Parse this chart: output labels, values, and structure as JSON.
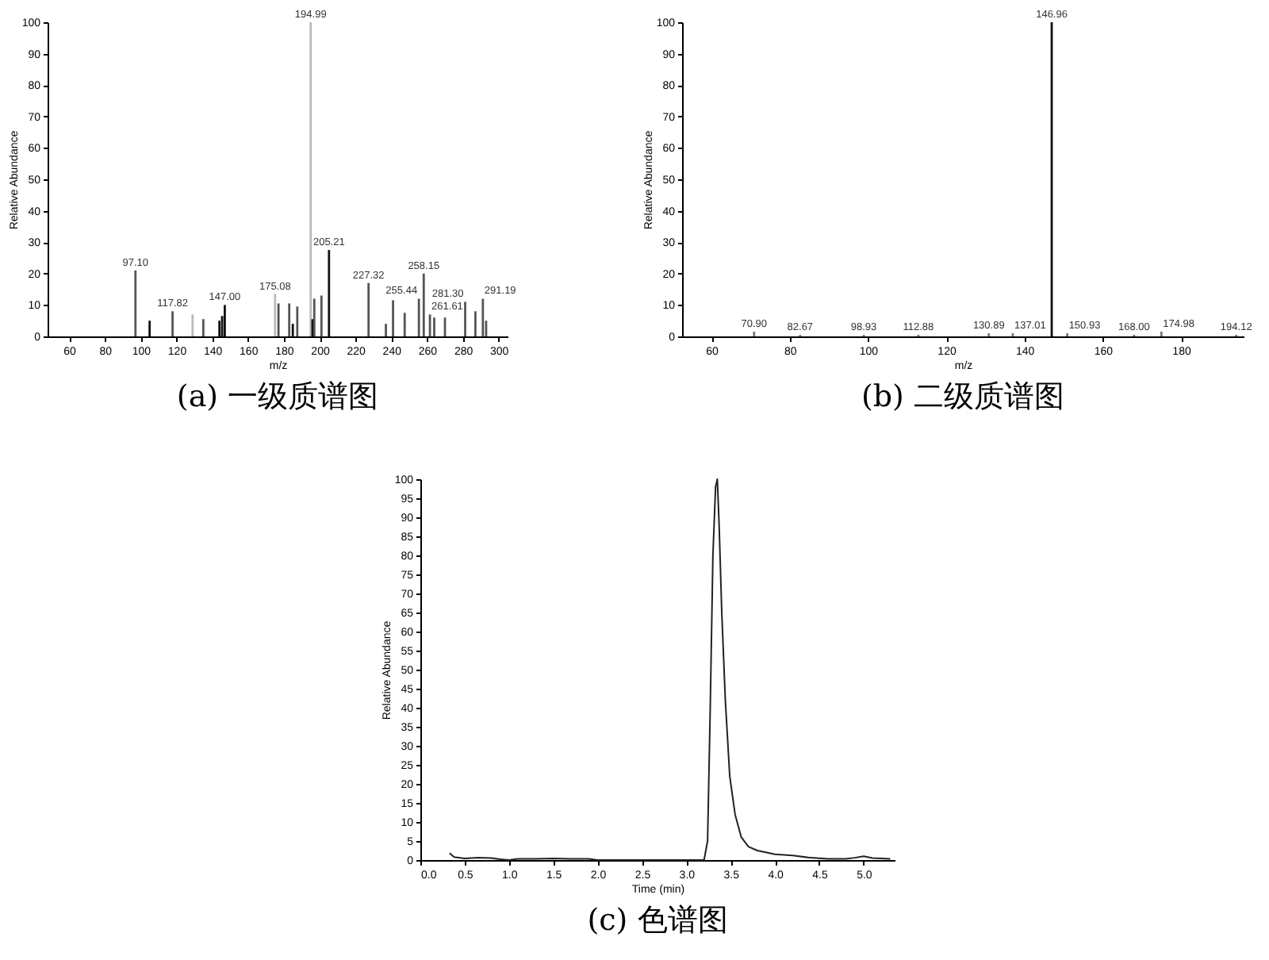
{
  "chart_data": [
    {
      "type": "bar",
      "title": "(a) 一级质谱图",
      "xlabel": "m/z",
      "ylabel": "Relative Abundance",
      "xlim": [
        48,
        305
      ],
      "xticks": [
        60,
        80,
        100,
        120,
        140,
        160,
        180,
        200,
        220,
        240,
        260,
        280,
        300
      ],
      "ylim": [
        0,
        100
      ],
      "yticks": [
        0,
        10,
        20,
        30,
        40,
        50,
        60,
        70,
        80,
        90,
        100
      ],
      "x": [
        97.1,
        105,
        117.82,
        129,
        135,
        144,
        145.5,
        147,
        175.08,
        177,
        183,
        185,
        187.5,
        194.99,
        196,
        197,
        201,
        205.21,
        227.32,
        237,
        241,
        247.5,
        255.44,
        258.15,
        261.61,
        264,
        270,
        281.3,
        287,
        291.19,
        293
      ],
      "values": [
        21,
        5,
        8,
        7,
        5.5,
        5,
        6.5,
        10,
        13.5,
        10.5,
        10.5,
        4,
        9.5,
        100,
        5.5,
        12,
        13,
        27.5,
        17,
        4,
        11.5,
        7.5,
        12,
        20,
        7,
        6,
        6,
        11,
        8,
        12,
        5
      ],
      "colors": [
        "#555555",
        "#111111",
        "#555555",
        "#bbbbbb",
        "#555555",
        "#111111",
        "#111111",
        "#111111",
        "#bbbbbb",
        "#555555",
        "#555555",
        "#111111",
        "#555555",
        "#bbbbbb",
        "#111111",
        "#555555",
        "#555555",
        "#111111",
        "#555555",
        "#555555",
        "#555555",
        "#555555",
        "#555555",
        "#555555",
        "#555555",
        "#555555",
        "#555555",
        "#555555",
        "#555555",
        "#555555",
        "#555555"
      ],
      "annotations": [
        {
          "text": "97.10",
          "x": 97.1,
          "y": 21
        },
        {
          "text": "117.82",
          "x": 117.82,
          "y": 8
        },
        {
          "text": "147.00",
          "x": 147,
          "y": 10
        },
        {
          "text": "175.08",
          "x": 175.08,
          "y": 13.5
        },
        {
          "text": "194.99",
          "x": 194.99,
          "y": 100
        },
        {
          "text": "205.21",
          "x": 205.21,
          "y": 27.5
        },
        {
          "text": "227.32",
          "x": 227.32,
          "y": 17
        },
        {
          "text": "255.44",
          "x": 255.44,
          "y": 12
        },
        {
          "text": "258.15",
          "x": 258.15,
          "y": 20
        },
        {
          "text": "261.61",
          "x": 261.61,
          "y": 7
        },
        {
          "text": "281.30",
          "x": 281.3,
          "y": 11
        },
        {
          "text": "291.19",
          "x": 291.19,
          "y": 12
        }
      ]
    },
    {
      "type": "bar",
      "title": "(b) 二级质谱图",
      "xlabel": "m/z",
      "ylabel": "Relative Abundance",
      "xlim": [
        52.5,
        196
      ],
      "xticks": [
        60,
        80,
        100,
        120,
        140,
        160,
        180
      ],
      "ylim": [
        0,
        100
      ],
      "yticks": [
        0,
        10,
        20,
        30,
        40,
        50,
        60,
        70,
        80,
        90,
        100
      ],
      "x": [
        70.9,
        82.67,
        98.93,
        112.88,
        130.89,
        137.01,
        146.96,
        150.93,
        168,
        174.98,
        194.12
      ],
      "values": [
        1.5,
        0.5,
        0.5,
        0.5,
        1,
        1,
        100,
        1,
        0.5,
        1.5,
        0.5
      ],
      "colors": [
        "#777777",
        "#777777",
        "#777777",
        "#777777",
        "#777777",
        "#777777",
        "#111111",
        "#777777",
        "#777777",
        "#777777",
        "#777777"
      ],
      "annotations": [
        {
          "text": "70.90",
          "x": 70.9,
          "y": 1.5
        },
        {
          "text": "82.67",
          "x": 82.67,
          "y": 0.5
        },
        {
          "text": "98.93",
          "x": 98.93,
          "y": 0.5
        },
        {
          "text": "112.88",
          "x": 112.88,
          "y": 0.5
        },
        {
          "text": "130.89",
          "x": 130.89,
          "y": 1
        },
        {
          "text": "137.01",
          "x": 137.01,
          "y": 1
        },
        {
          "text": "146.96",
          "x": 146.96,
          "y": 100
        },
        {
          "text": "150.93",
          "x": 150.93,
          "y": 1
        },
        {
          "text": "168.00",
          "x": 168,
          "y": 0.5
        },
        {
          "text": "174.98",
          "x": 174.98,
          "y": 1.5
        },
        {
          "text": "194.12",
          "x": 194.12,
          "y": 0.5
        }
      ]
    },
    {
      "type": "line",
      "title": "(c) 色谱图",
      "xlabel": "Time (min)",
      "ylabel": "Relative Abundance",
      "xlim": [
        0,
        5.35
      ],
      "xticks": [
        {
          "value": 0,
          "label": "0.0"
        },
        0.5,
        {
          "value": 1,
          "label": "1.0"
        },
        1.5,
        {
          "value": 2,
          "label": "2.0"
        },
        2.5,
        {
          "value": 3,
          "label": "3.0"
        },
        3.5,
        {
          "value": 4,
          "label": "4.0"
        },
        4.5,
        {
          "value": 5,
          "label": "5.0"
        }
      ],
      "ylim": [
        0,
        100
      ],
      "yticks": [
        0,
        5,
        10,
        15,
        20,
        25,
        30,
        35,
        40,
        45,
        50,
        55,
        60,
        65,
        70,
        75,
        80,
        85,
        90,
        95,
        100
      ],
      "x": [
        0.33,
        0.38,
        0.5,
        0.65,
        0.8,
        0.9,
        1.0,
        1.1,
        1.3,
        1.5,
        1.7,
        1.9,
        2.0,
        2.5,
        3.0,
        3.2,
        3.24,
        3.27,
        3.3,
        3.33,
        3.35,
        3.37,
        3.4,
        3.44,
        3.49,
        3.55,
        3.62,
        3.7,
        3.8,
        4.0,
        4.2,
        4.4,
        4.6,
        4.8,
        4.9,
        5.0,
        5.1,
        5.3
      ],
      "series": [
        {
          "color": "#222222",
          "values": [
            1.8,
            0.8,
            0.4,
            0.6,
            0.5,
            0.2,
            0,
            0.3,
            0.3,
            0.4,
            0.3,
            0.3,
            0,
            0,
            0,
            0,
            5,
            40,
            80,
            98,
            100,
            88,
            65,
            42,
            22,
            12,
            6,
            3.5,
            2.5,
            1.5,
            1.2,
            0.6,
            0.3,
            0.3,
            0.6,
            1,
            0.5,
            0.3
          ]
        }
      ]
    }
  ]
}
